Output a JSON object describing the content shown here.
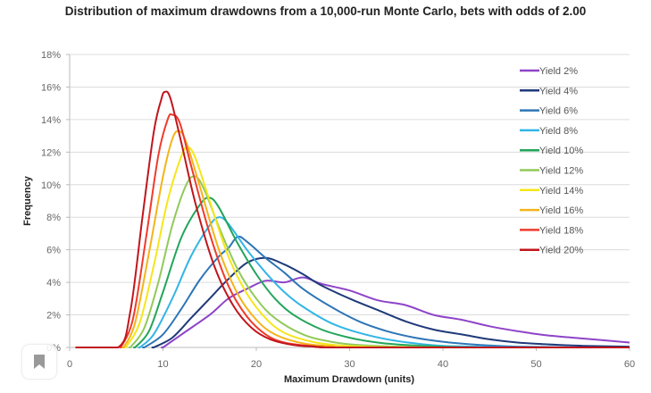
{
  "chart_data": {
    "type": "line",
    "title": "Distribution of maximum drawdowns from a 10,000-run Monte Carlo, bets with odds of 2.00",
    "xlabel": "Maximum Drawdown (units)",
    "ylabel": "Frequency",
    "xlim": [
      0,
      60
    ],
    "ylim": [
      0,
      18
    ],
    "x_ticks": [
      "0",
      "10",
      "20",
      "30",
      "40",
      "50",
      "60"
    ],
    "y_ticks": [
      "0%",
      "2%",
      "4%",
      "6%",
      "8%",
      "10%",
      "12%",
      "14%",
      "16%",
      "18%"
    ],
    "grid": true,
    "legend_position": "top-right",
    "series": [
      {
        "name": "Yield 2%",
        "color": "#8e44c8",
        "points": [
          [
            10,
            0
          ],
          [
            12,
            0.8
          ],
          [
            15,
            2.0
          ],
          [
            17,
            3.0
          ],
          [
            19,
            3.6
          ],
          [
            21,
            4.1
          ],
          [
            23,
            4.0
          ],
          [
            25,
            4.3
          ],
          [
            27,
            3.9
          ],
          [
            30,
            3.5
          ],
          [
            33,
            2.9
          ],
          [
            36,
            2.6
          ],
          [
            39,
            2.0
          ],
          [
            42,
            1.7
          ],
          [
            45,
            1.3
          ],
          [
            48,
            1.0
          ],
          [
            51,
            0.75
          ],
          [
            54,
            0.6
          ],
          [
            57,
            0.45
          ],
          [
            60,
            0.3
          ]
        ]
      },
      {
        "name": "Yield 4%",
        "color": "#1f3a7a",
        "points": [
          [
            9,
            0
          ],
          [
            11,
            0.6
          ],
          [
            13,
            1.8
          ],
          [
            15,
            3.0
          ],
          [
            17,
            4.2
          ],
          [
            19,
            5.2
          ],
          [
            21,
            5.5
          ],
          [
            23,
            5.1
          ],
          [
            25,
            4.5
          ],
          [
            27,
            3.8
          ],
          [
            30,
            3.0
          ],
          [
            33,
            2.3
          ],
          [
            36,
            1.6
          ],
          [
            39,
            1.1
          ],
          [
            42,
            0.8
          ],
          [
            45,
            0.5
          ],
          [
            48,
            0.3
          ],
          [
            51,
            0.2
          ],
          [
            55,
            0.1
          ],
          [
            60,
            0.05
          ]
        ]
      },
      {
        "name": "Yield 6%",
        "color": "#2e75b6",
        "points": [
          [
            8,
            0
          ],
          [
            10,
            0.8
          ],
          [
            12,
            2.4
          ],
          [
            14,
            4.2
          ],
          [
            16,
            5.6
          ],
          [
            17,
            6.1
          ],
          [
            18,
            6.8
          ],
          [
            19,
            6.5
          ],
          [
            21,
            5.5
          ],
          [
            23,
            4.6
          ],
          [
            25,
            3.6
          ],
          [
            28,
            2.5
          ],
          [
            31,
            1.6
          ],
          [
            34,
            1.0
          ],
          [
            37,
            0.6
          ],
          [
            40,
            0.35
          ],
          [
            44,
            0.15
          ],
          [
            48,
            0.05
          ],
          [
            55,
            0
          ],
          [
            60,
            0
          ]
        ]
      },
      {
        "name": "Yield 8%",
        "color": "#33b5e5",
        "points": [
          [
            7.5,
            0
          ],
          [
            9,
            0.8
          ],
          [
            11,
            3.0
          ],
          [
            13,
            5.6
          ],
          [
            15,
            7.5
          ],
          [
            16,
            8.0
          ],
          [
            17,
            7.6
          ],
          [
            19,
            6.0
          ],
          [
            21,
            4.6
          ],
          [
            23,
            3.4
          ],
          [
            25,
            2.5
          ],
          [
            28,
            1.5
          ],
          [
            31,
            0.9
          ],
          [
            34,
            0.5
          ],
          [
            37,
            0.25
          ],
          [
            40,
            0.1
          ],
          [
            45,
            0.03
          ],
          [
            50,
            0
          ],
          [
            60,
            0
          ]
        ]
      },
      {
        "name": "Yield 10%",
        "color": "#22a55a",
        "points": [
          [
            7,
            0
          ],
          [
            8.5,
            1.0
          ],
          [
            10,
            3.4
          ],
          [
            12,
            6.8
          ],
          [
            14,
            8.8
          ],
          [
            15,
            9.2
          ],
          [
            16,
            8.6
          ],
          [
            18,
            6.4
          ],
          [
            20,
            4.5
          ],
          [
            22,
            3.0
          ],
          [
            24,
            2.0
          ],
          [
            27,
            1.1
          ],
          [
            30,
            0.6
          ],
          [
            33,
            0.3
          ],
          [
            36,
            0.15
          ],
          [
            40,
            0.05
          ],
          [
            45,
            0
          ],
          [
            60,
            0
          ]
        ]
      },
      {
        "name": "Yield 12%",
        "color": "#92c95a",
        "points": [
          [
            6.5,
            0
          ],
          [
            8,
            1.2
          ],
          [
            9.5,
            4.0
          ],
          [
            11,
            7.5
          ],
          [
            12.5,
            10.0
          ],
          [
            13.5,
            10.5
          ],
          [
            14.5,
            9.6
          ],
          [
            16,
            7.4
          ],
          [
            18,
            4.8
          ],
          [
            20,
            3.0
          ],
          [
            22,
            1.8
          ],
          [
            25,
            0.8
          ],
          [
            28,
            0.35
          ],
          [
            31,
            0.15
          ],
          [
            35,
            0.05
          ],
          [
            40,
            0
          ],
          [
            60,
            0
          ]
        ]
      },
      {
        "name": "Yield 14%",
        "color": "#f5e61a",
        "points": [
          [
            6,
            0
          ],
          [
            7.5,
            1.5
          ],
          [
            9,
            5.0
          ],
          [
            10.5,
            9.0
          ],
          [
            12,
            11.8
          ],
          [
            12.7,
            12.3
          ],
          [
            13.5,
            11.6
          ],
          [
            15,
            9.0
          ],
          [
            17,
            5.6
          ],
          [
            19,
            3.3
          ],
          [
            21,
            1.8
          ],
          [
            23,
            0.9
          ],
          [
            26,
            0.35
          ],
          [
            29,
            0.12
          ],
          [
            33,
            0.03
          ],
          [
            40,
            0
          ],
          [
            60,
            0
          ]
        ]
      },
      {
        "name": "Yield 16%",
        "color": "#f4b41a",
        "points": [
          [
            5.8,
            0
          ],
          [
            7,
            1.5
          ],
          [
            8.5,
            5.8
          ],
          [
            10,
            10.5
          ],
          [
            11,
            12.8
          ],
          [
            11.7,
            13.3
          ],
          [
            12.5,
            12.6
          ],
          [
            14,
            9.8
          ],
          [
            16,
            6.0
          ],
          [
            18,
            3.3
          ],
          [
            20,
            1.7
          ],
          [
            22,
            0.8
          ],
          [
            25,
            0.25
          ],
          [
            28,
            0.08
          ],
          [
            32,
            0
          ],
          [
            60,
            0
          ]
        ]
      },
      {
        "name": "Yield 18%",
        "color": "#ef3b2c",
        "points": [
          [
            5.5,
            0
          ],
          [
            6.8,
            1.8
          ],
          [
            8.2,
            6.8
          ],
          [
            9.5,
            11.8
          ],
          [
            10.5,
            14.0
          ],
          [
            11,
            14.3
          ],
          [
            11.8,
            13.8
          ],
          [
            13,
            11.2
          ],
          [
            15,
            7.0
          ],
          [
            17,
            3.8
          ],
          [
            19,
            1.9
          ],
          [
            21,
            0.8
          ],
          [
            23,
            0.3
          ],
          [
            26,
            0.08
          ],
          [
            30,
            0
          ],
          [
            60,
            0
          ]
        ]
      },
      {
        "name": "Yield 20%",
        "color": "#c0161d",
        "points": [
          [
            1,
            0
          ],
          [
            5.2,
            0
          ],
          [
            6.5,
            2.2
          ],
          [
            7.8,
            8.0
          ],
          [
            9,
            13.2
          ],
          [
            9.8,
            15.2
          ],
          [
            10.2,
            15.7
          ],
          [
            10.8,
            15.3
          ],
          [
            12,
            12.5
          ],
          [
            13.5,
            8.8
          ],
          [
            15.5,
            5.0
          ],
          [
            17.5,
            2.6
          ],
          [
            19.5,
            1.2
          ],
          [
            21.5,
            0.5
          ],
          [
            24,
            0.15
          ],
          [
            27,
            0.03
          ],
          [
            30,
            0
          ],
          [
            60,
            0
          ]
        ]
      }
    ]
  },
  "ui": {
    "bookmark_icon": "bookmark-icon"
  }
}
